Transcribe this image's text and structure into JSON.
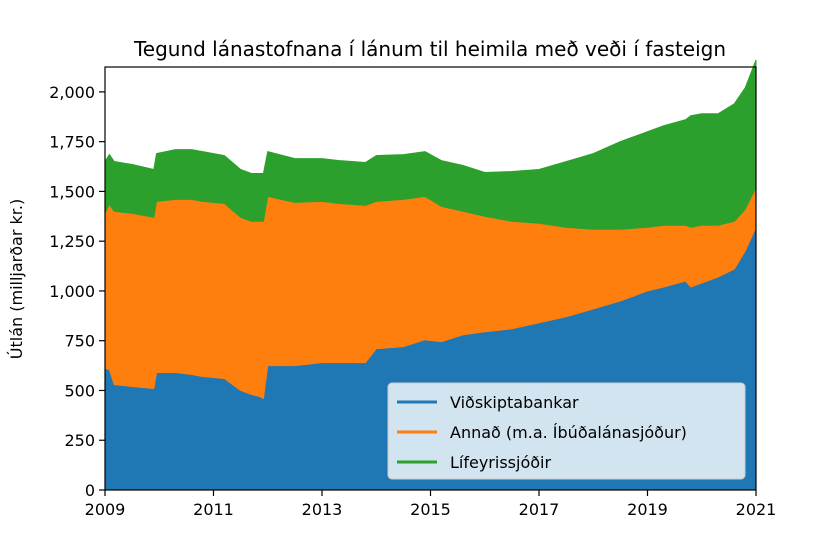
{
  "chart_data": {
    "type": "area",
    "title": "Tegund lánastofnana í lánum til heimila með veði í fasteign",
    "xlabel": "",
    "ylabel": "Útlán (milljarðar kr.)",
    "xlim": [
      2009,
      2021
    ],
    "ylim": [
      0,
      2125
    ],
    "x_ticks": [
      2009,
      2011,
      2013,
      2015,
      2017,
      2019,
      2021
    ],
    "x_tick_labels": [
      "2009",
      "2011",
      "2013",
      "2015",
      "2017",
      "2019",
      "2021"
    ],
    "y_ticks": [
      0,
      250,
      500,
      750,
      1000,
      1250,
      1500,
      1750,
      2000
    ],
    "y_tick_labels": [
      "0",
      "250",
      "500",
      "750",
      "1,000",
      "1,250",
      "1,500",
      "1,750",
      "2,000"
    ],
    "stacked": true,
    "legend_position": "lower-right",
    "grid": false,
    "x": [
      2009.0,
      2009.08,
      2009.17,
      2009.5,
      2009.9,
      2009.95,
      2010.3,
      2010.6,
      2010.8,
      2011.2,
      2011.5,
      2011.7,
      2011.85,
      2011.92,
      2012.0,
      2012.5,
      2013.0,
      2013.3,
      2013.8,
      2014.0,
      2014.5,
      2014.9,
      2015.2,
      2015.6,
      2016.0,
      2016.5,
      2017.0,
      2017.5,
      2018.0,
      2018.5,
      2019.0,
      2019.3,
      2019.7,
      2019.8,
      2020.0,
      2020.3,
      2020.6,
      2020.8,
      2021.0
    ],
    "series": [
      {
        "name": "Viðskiptabankar",
        "color": "#1f77b4",
        "values": [
          610,
          605,
          530,
          520,
          510,
          590,
          590,
          580,
          570,
          560,
          500,
          480,
          470,
          460,
          625,
          625,
          640,
          640,
          640,
          710,
          720,
          755,
          745,
          780,
          795,
          810,
          840,
          870,
          910,
          950,
          1000,
          1020,
          1050,
          1020,
          1040,
          1070,
          1110,
          1200,
          1320
        ]
      },
      {
        "name": "Annað (m.a. Íbúðalánasjóður)",
        "color": "#ff7f0e",
        "values": [
          780,
          830,
          870,
          870,
          860,
          860,
          870,
          880,
          880,
          880,
          870,
          870,
          880,
          890,
          850,
          820,
          810,
          800,
          790,
          740,
          740,
          720,
          680,
          620,
          580,
          540,
          500,
          450,
          400,
          360,
          320,
          310,
          280,
          300,
          290,
          260,
          240,
          210,
          200
        ]
      },
      {
        "name": "Lífeyrissjóðir",
        "color": "#2ca02c",
        "values": [
          260,
          250,
          250,
          245,
          240,
          240,
          250,
          250,
          250,
          240,
          240,
          240,
          240,
          240,
          225,
          220,
          215,
          215,
          215,
          230,
          225,
          225,
          230,
          230,
          220,
          250,
          270,
          330,
          380,
          440,
          480,
          500,
          530,
          560,
          560,
          560,
          590,
          610,
          640
        ]
      }
    ]
  }
}
